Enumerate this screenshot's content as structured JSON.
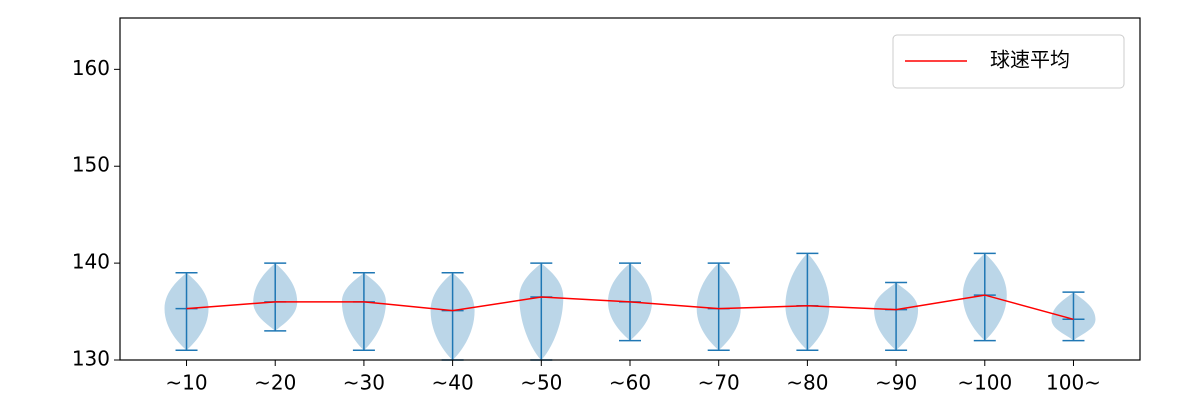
{
  "chart_data": {
    "type": "violin",
    "categories": [
      "~10",
      "~20",
      "~30",
      "~40",
      "~50",
      "~60",
      "~70",
      "~80",
      "~90",
      "~100",
      "100~"
    ],
    "max": [
      139,
      140,
      139,
      139,
      140,
      140,
      140,
      141,
      138,
      141,
      137
    ],
    "min": [
      131,
      133,
      131,
      130,
      130,
      132,
      131,
      131,
      131,
      132,
      132
    ],
    "violin_color": "#1f77b4",
    "series": [
      {
        "name": "球速平均",
        "color": "#ff0000",
        "values": [
          135.3,
          136.0,
          136.0,
          135.1,
          136.5,
          136.0,
          135.3,
          135.6,
          135.2,
          136.7,
          134.2
        ]
      }
    ],
    "ylim": [
      130,
      165.3
    ],
    "yticks": [
      130,
      140,
      150,
      160
    ],
    "grid": false,
    "legend": "upper right"
  }
}
